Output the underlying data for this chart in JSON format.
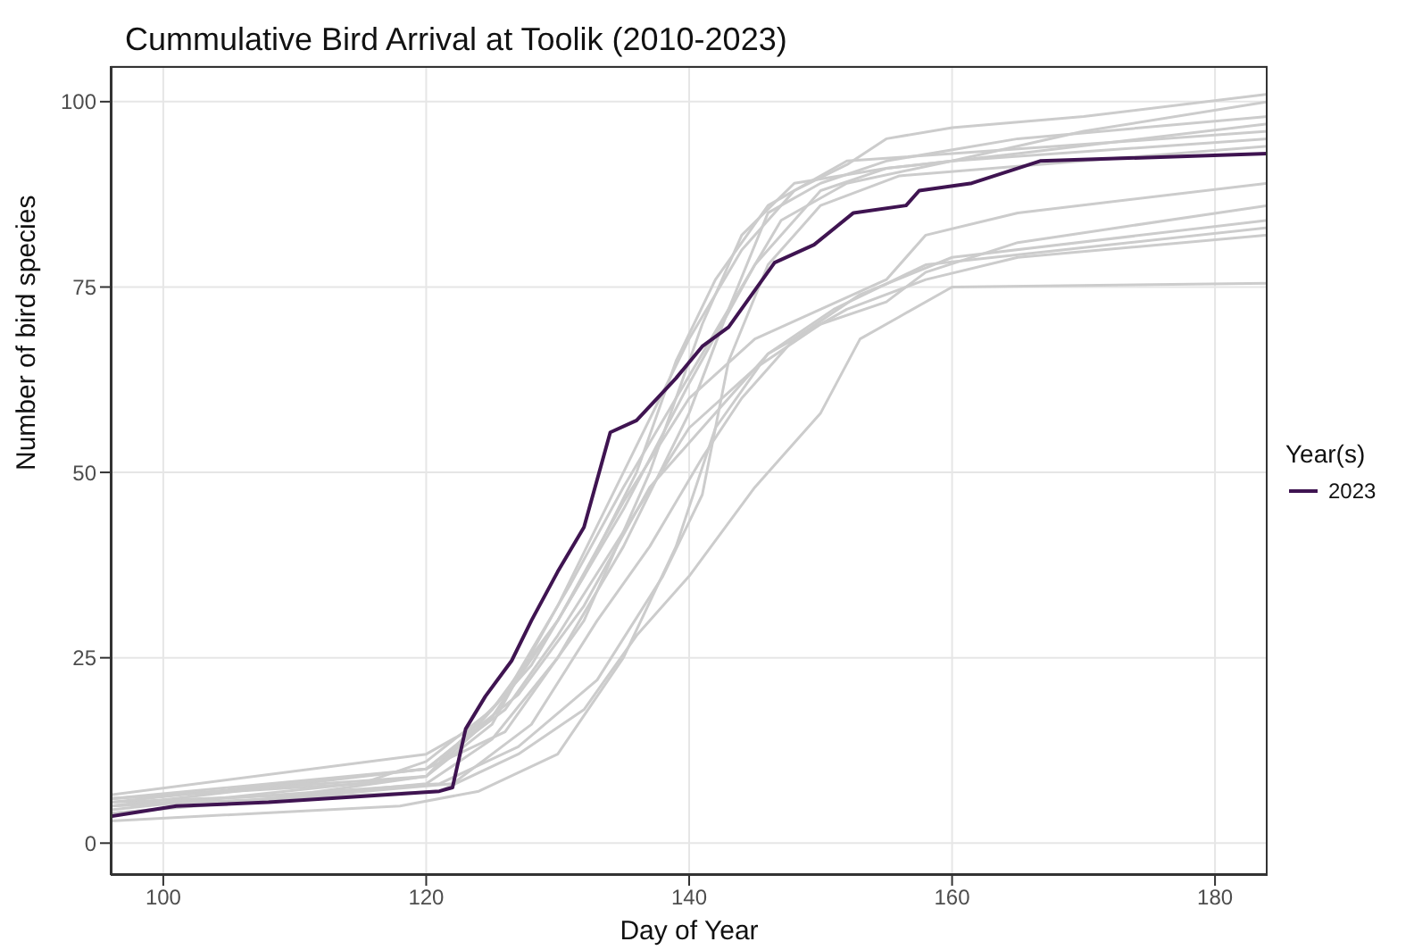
{
  "chart_data": {
    "type": "line",
    "title": "Cummulative Bird Arrival at Toolik (2010-2023)",
    "xlabel": "Day of Year",
    "ylabel": "Number of bird species",
    "legend_title": "Year(s)",
    "legend": "right",
    "grid": true,
    "xlim": [
      96,
      184
    ],
    "ylim": [
      -4.3,
      104.8
    ],
    "xticks": [
      100,
      120,
      140,
      160,
      180
    ],
    "yticks": [
      0,
      25,
      50,
      75,
      100
    ],
    "line_style": "solid",
    "marker": "none",
    "series": [
      {
        "color": "#cccccc",
        "x": [
          96,
          110,
          120,
          125,
          130,
          135,
          140,
          144,
          148,
          152,
          155,
          160,
          170,
          184
        ],
        "values": [
          5.5,
          6.5,
          9,
          16,
          32,
          50,
          68,
          80,
          88,
          91.5,
          95,
          96.5,
          98,
          101
        ]
      },
      {
        "color": "#cccccc",
        "x": [
          96,
          115,
          120,
          125,
          130,
          135,
          140,
          145,
          150,
          155,
          160,
          170,
          184
        ],
        "values": [
          6,
          8,
          11,
          18,
          30,
          45,
          62,
          78,
          88,
          91,
          92,
          96,
          100
        ]
      },
      {
        "color": "#cccccc",
        "x": [
          96,
          120,
          125,
          130,
          135,
          140,
          143,
          146,
          150,
          155,
          165,
          184
        ],
        "values": [
          4,
          8,
          14,
          25,
          40,
          58,
          72,
          85,
          89,
          92,
          95,
          98
        ]
      },
      {
        "color": "#cccccc",
        "x": [
          96,
          120,
          126,
          132,
          137,
          141,
          144,
          148,
          155,
          165,
          184
        ],
        "values": [
          5,
          10,
          15,
          30,
          50,
          70,
          82,
          89,
          91,
          93,
          97
        ]
      },
      {
        "color": "#cccccc",
        "x": [
          96,
          120,
          124,
          128,
          132,
          136,
          139,
          142,
          146,
          152,
          160,
          184
        ],
        "values": [
          6.5,
          12,
          16,
          24,
          36,
          50,
          65,
          76,
          86,
          92,
          93,
          96
        ]
      },
      {
        "color": "#cccccc",
        "x": [
          96,
          120,
          126,
          131,
          135,
          139,
          143,
          147,
          152,
          160,
          184
        ],
        "values": [
          6,
          9,
          20,
          35,
          48,
          60,
          72,
          84,
          89,
          92,
          95
        ]
      },
      {
        "color": "#cccccc",
        "x": [
          96,
          121,
          127,
          133,
          138,
          141,
          143,
          146,
          150,
          156,
          184
        ],
        "values": [
          5,
          8,
          13,
          22,
          36,
          47,
          65,
          78,
          86,
          90,
          94
        ]
      },
      {
        "color": "#cccccc",
        "x": [
          96,
          120,
          125,
          130,
          135,
          140,
          145,
          150,
          155,
          158,
          165,
          184
        ],
        "values": [
          4.5,
          9,
          17,
          30,
          46,
          60,
          68,
          72,
          76,
          82,
          85,
          89
        ]
      },
      {
        "color": "#cccccc",
        "x": [
          96,
          120,
          126,
          130,
          135,
          140,
          145,
          150,
          155,
          158,
          165,
          184
        ],
        "values": [
          5.5,
          10,
          18,
          28,
          42,
          56,
          64,
          70,
          73,
          77,
          81,
          86
        ]
      },
      {
        "color": "#cccccc",
        "x": [
          96,
          122,
          128,
          133,
          137,
          141,
          144,
          148,
          153,
          160,
          184
        ],
        "values": [
          4,
          8,
          16,
          30,
          40,
          52,
          60,
          68,
          74,
          79,
          84
        ]
      },
      {
        "color": "#cccccc",
        "x": [
          96,
          118,
          124,
          130,
          135,
          139,
          142,
          146,
          151,
          158,
          184
        ],
        "values": [
          3,
          5,
          7,
          12,
          25,
          40,
          56,
          66,
          72,
          78,
          83
        ]
      },
      {
        "color": "#cccccc",
        "x": [
          96,
          120,
          127,
          132,
          137,
          141,
          146,
          152,
          158,
          165,
          184
        ],
        "values": [
          6,
          10,
          20,
          32,
          48,
          56,
          66,
          72,
          76,
          79,
          82
        ]
      },
      {
        "color": "#cccccc",
        "x": [
          96,
          121,
          127,
          132,
          136,
          140,
          145,
          150,
          153,
          156,
          160,
          184
        ],
        "values": [
          5,
          7,
          12,
          18,
          28,
          36,
          48,
          58,
          68,
          71,
          75,
          75.5
        ]
      },
      {
        "name": "2023",
        "color": "#3f1451",
        "x": [
          96,
          101,
          108,
          115,
          121,
          122,
          123,
          124.5,
          126.5,
          128,
          130,
          132,
          134,
          136,
          139,
          141,
          143,
          146.5,
          149.5,
          152.5,
          156.5,
          157.5,
          161.5,
          166.7,
          184
        ],
        "values": [
          3.6,
          5,
          5.5,
          6.3,
          7,
          7.5,
          15.4,
          19.8,
          24.6,
          30,
          36.6,
          42.6,
          55.4,
          57,
          62.7,
          67,
          69.6,
          78.3,
          80.7,
          85,
          86,
          88,
          89,
          92,
          93
        ]
      }
    ]
  }
}
